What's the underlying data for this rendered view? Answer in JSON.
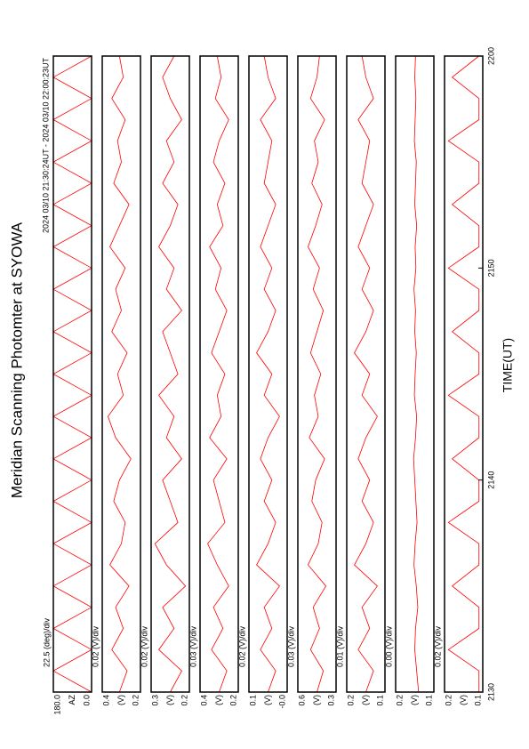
{
  "title": "Meridian Scanning Photomter at SYOWA",
  "subtitle": "2024 03/10 21:30:24UT - 2024 03/10 22:00:23UT",
  "chart_data": [
    {
      "type": "line",
      "scale_label": "22.5 (deg)/div",
      "ylabel": "AZ",
      "color": "#ff0000",
      "xlim": [
        0,
        30
      ],
      "ylim": [
        0,
        180
      ],
      "yticks": [
        {
          "value": 180,
          "label": "180.0"
        },
        {
          "value": 0,
          "label": "0.0"
        }
      ],
      "x": [
        0,
        1,
        2,
        3,
        4,
        5,
        6,
        7,
        8,
        9,
        10,
        11,
        12,
        13,
        14,
        15,
        16,
        17,
        18,
        19,
        20,
        21,
        22,
        23,
        24,
        25,
        26,
        27,
        28,
        29,
        30
      ],
      "series": [
        {
          "color": "#ff0000",
          "values": [
            0,
            180,
            0,
            180,
            0,
            180,
            0,
            180,
            0,
            180,
            0,
            180,
            0,
            180,
            0,
            180,
            0,
            180,
            0,
            180,
            0,
            180,
            0,
            180,
            0,
            180,
            0,
            180,
            0,
            180,
            0
          ]
        }
      ]
    },
    {
      "type": "line",
      "scale_label": "0.02 (V)/div",
      "ylabel": "(V)",
      "xlim": [
        0,
        30
      ],
      "ylim": [
        0.2,
        0.4
      ],
      "yticks": [
        0.4,
        0.2
      ],
      "x": [
        0,
        1,
        2,
        3,
        4,
        5,
        6,
        7,
        8,
        9,
        10,
        11,
        12,
        13,
        14,
        15,
        16,
        17,
        18,
        19,
        20,
        21,
        22,
        23,
        24,
        25,
        26,
        27,
        28,
        29,
        30
      ],
      "series": [
        {
          "color": "#ff0000",
          "values": [
            0.31,
            0.27,
            0.35,
            0.29,
            0.33,
            0.26,
            0.36,
            0.3,
            0.28,
            0.34,
            0.31,
            0.25,
            0.33,
            0.37,
            0.29,
            0.32,
            0.27,
            0.35,
            0.3,
            0.33,
            0.28,
            0.36,
            0.31,
            0.26,
            0.34,
            0.3,
            0.32,
            0.28,
            0.35,
            0.29,
            0.31
          ]
        }
      ]
    },
    {
      "type": "line",
      "scale_label": "0.02 (V)/div",
      "ylabel": "(V)",
      "xlim": [
        0,
        30
      ],
      "ylim": [
        0.2,
        0.3
      ],
      "yticks": [
        0.3,
        0.2
      ],
      "x": [
        0,
        1,
        2,
        3,
        4,
        5,
        6,
        7,
        8,
        9,
        10,
        11,
        12,
        13,
        14,
        15,
        16,
        17,
        18,
        19,
        20,
        21,
        22,
        23,
        24,
        25,
        26,
        27,
        28,
        29,
        30
      ],
      "series": [
        {
          "color": "#ff0000",
          "values": [
            0.25,
            0.22,
            0.28,
            0.24,
            0.27,
            0.21,
            0.26,
            0.29,
            0.23,
            0.25,
            0.27,
            0.22,
            0.26,
            0.24,
            0.28,
            0.23,
            0.25,
            0.27,
            0.22,
            0.26,
            0.24,
            0.28,
            0.25,
            0.23,
            0.27,
            0.24,
            0.26,
            0.22,
            0.25,
            0.27,
            0.24
          ]
        }
      ]
    },
    {
      "type": "line",
      "scale_label": "0.03 (V)/div",
      "ylabel": "(V)",
      "xlim": [
        0,
        30
      ],
      "ylim": [
        0.2,
        0.4
      ],
      "yticks": [
        0.4,
        0.2
      ],
      "x": [
        0,
        1,
        2,
        3,
        4,
        5,
        6,
        7,
        8,
        9,
        10,
        11,
        12,
        13,
        14,
        15,
        16,
        17,
        18,
        19,
        20,
        21,
        22,
        23,
        24,
        25,
        26,
        27,
        28,
        29,
        30
      ],
      "series": [
        {
          "color": "#ff0000",
          "values": [
            0.3,
            0.26,
            0.34,
            0.28,
            0.33,
            0.25,
            0.31,
            0.36,
            0.27,
            0.3,
            0.33,
            0.26,
            0.35,
            0.29,
            0.31,
            0.27,
            0.34,
            0.3,
            0.26,
            0.32,
            0.29,
            0.35,
            0.28,
            0.31,
            0.27,
            0.33,
            0.3,
            0.25,
            0.32,
            0.29,
            0.31
          ]
        }
      ]
    },
    {
      "type": "line",
      "scale_label": "0.02 (V)/div",
      "ylabel": "(V)",
      "xlim": [
        0,
        30
      ],
      "ylim": [
        0,
        0.1
      ],
      "yticks": [
        0.1,
        {
          "value": 0,
          "label": "-0.0"
        }
      ],
      "x": [
        0,
        1,
        2,
        3,
        4,
        5,
        6,
        7,
        8,
        9,
        10,
        11,
        12,
        13,
        14,
        15,
        16,
        17,
        18,
        19,
        20,
        21,
        22,
        23,
        24,
        25,
        26,
        27,
        28,
        29,
        30
      ],
      "series": [
        {
          "color": "#ff0000",
          "values": [
            0.05,
            0.03,
            0.07,
            0.04,
            0.06,
            0.02,
            0.08,
            0.05,
            0.03,
            0.06,
            0.04,
            0.07,
            0.05,
            0.02,
            0.06,
            0.04,
            0.08,
            0.05,
            0.03,
            0.06,
            0.04,
            0.07,
            0.05,
            0.03,
            0.06,
            0.05,
            0.04,
            0.07,
            0.03,
            0.05,
            0.06
          ]
        }
      ]
    },
    {
      "type": "line",
      "scale_label": "0.03 (V)/div",
      "ylabel": "(V)",
      "xlim": [
        0,
        30
      ],
      "ylim": [
        0.3,
        0.6
      ],
      "yticks": [
        0.6,
        0.3
      ],
      "x": [
        0,
        1,
        2,
        3,
        4,
        5,
        6,
        7,
        8,
        9,
        10,
        11,
        12,
        13,
        14,
        15,
        16,
        17,
        18,
        19,
        20,
        21,
        22,
        23,
        24,
        25,
        26,
        27,
        28,
        29,
        30
      ],
      "series": [
        {
          "color": "#ff0000",
          "values": [
            0.45,
            0.4,
            0.5,
            0.43,
            0.48,
            0.38,
            0.52,
            0.44,
            0.41,
            0.49,
            0.46,
            0.39,
            0.51,
            0.44,
            0.47,
            0.42,
            0.5,
            0.45,
            0.4,
            0.48,
            0.43,
            0.52,
            0.46,
            0.41,
            0.49,
            0.44,
            0.47,
            0.39,
            0.5,
            0.45,
            0.43
          ]
        }
      ]
    },
    {
      "type": "line",
      "scale_label": "0.01 (V)/div",
      "ylabel": "(V)",
      "xlim": [
        0,
        30
      ],
      "ylim": [
        0.1,
        0.2
      ],
      "yticks": [
        0.2,
        0.1
      ],
      "x": [
        0,
        1,
        2,
        3,
        4,
        5,
        6,
        7,
        8,
        9,
        10,
        11,
        12,
        13,
        14,
        15,
        16,
        17,
        18,
        19,
        20,
        21,
        22,
        23,
        24,
        25,
        26,
        27,
        28,
        29,
        30
      ],
      "series": [
        {
          "color": "#ff0000",
          "values": [
            0.15,
            0.13,
            0.17,
            0.14,
            0.16,
            0.12,
            0.18,
            0.15,
            0.13,
            0.16,
            0.14,
            0.17,
            0.15,
            0.12,
            0.16,
            0.14,
            0.18,
            0.15,
            0.13,
            0.16,
            0.14,
            0.17,
            0.15,
            0.13,
            0.16,
            0.15,
            0.14,
            0.17,
            0.13,
            0.15,
            0.16
          ]
        }
      ]
    },
    {
      "type": "line",
      "scale_label": "0.00 (V)/div",
      "ylabel": "(V)",
      "xlim": [
        0,
        30
      ],
      "ylim": [
        0.1,
        0.2
      ],
      "yticks": [
        0.2,
        0.1
      ],
      "x": [
        0,
        1,
        2,
        3,
        4,
        5,
        6,
        7,
        8,
        9,
        10,
        11,
        12,
        13,
        14,
        15,
        16,
        17,
        18,
        19,
        20,
        21,
        22,
        23,
        24,
        25,
        26,
        27,
        28,
        29,
        30
      ],
      "series": [
        {
          "color": "#ff0000",
          "values": [
            0.14,
            0.145,
            0.15,
            0.148,
            0.142,
            0.146,
            0.152,
            0.149,
            0.144,
            0.147,
            0.15,
            0.153,
            0.148,
            0.145,
            0.151,
            0.149,
            0.146,
            0.15,
            0.148,
            0.152,
            0.147,
            0.149,
            0.145,
            0.15,
            0.148,
            0.146,
            0.151,
            0.149,
            0.147,
            0.15,
            0.148
          ]
        }
      ]
    },
    {
      "type": "line",
      "scale_label": "0.02 (V)/div",
      "ylabel": "(V)",
      "xlabel": "TIME(UT)",
      "xlim": [
        0,
        30
      ],
      "ylim": [
        0.1,
        0.2
      ],
      "yticks": [
        0.2,
        0.1
      ],
      "xticks": [
        {
          "value": 0,
          "label": "2130"
        },
        {
          "value": 10,
          "label": "2140"
        },
        {
          "value": 20,
          "label": "2150"
        },
        {
          "value": 30,
          "label": "2200"
        }
      ],
      "x": [
        0,
        1,
        2,
        3,
        4,
        5,
        6,
        7,
        8,
        9,
        10,
        11,
        12,
        13,
        14,
        15,
        16,
        17,
        18,
        19,
        20,
        21,
        22,
        23,
        24,
        25,
        26,
        27,
        28,
        29,
        30
      ],
      "series": [
        {
          "color": "#ff0000",
          "values": [
            0.11,
            0.11,
            0.19,
            0.11,
            0.11,
            0.18,
            0.11,
            0.11,
            0.19,
            0.11,
            0.11,
            0.18,
            0.11,
            0.11,
            0.19,
            0.11,
            0.11,
            0.18,
            0.11,
            0.11,
            0.19,
            0.11,
            0.11,
            0.18,
            0.11,
            0.11,
            0.19,
            0.11,
            0.11,
            0.18,
            0.11
          ]
        }
      ]
    }
  ]
}
